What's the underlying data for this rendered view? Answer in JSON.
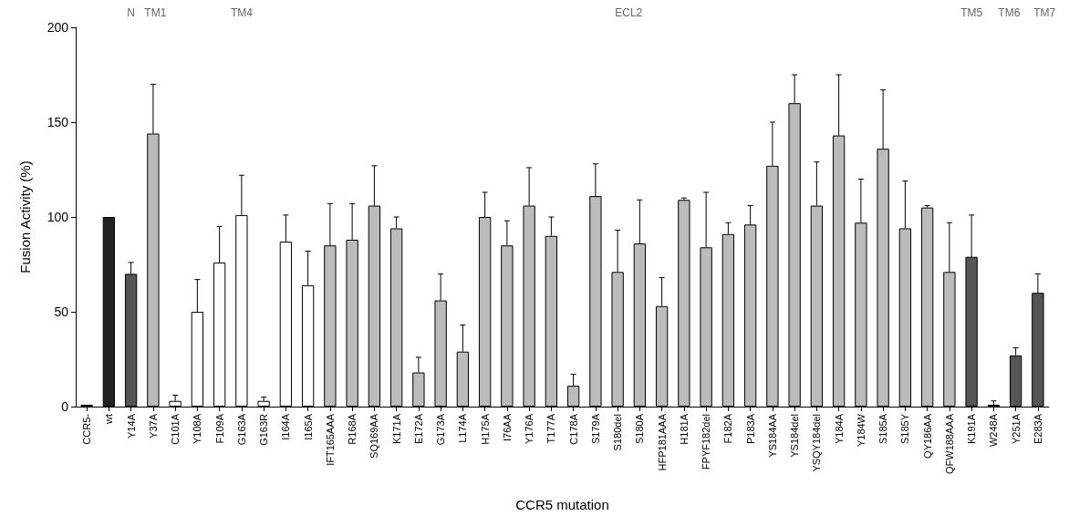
{
  "chart_data": {
    "type": "bar",
    "xlabel": "CCR5 mutation",
    "ylabel": "Fusion Activity (%)",
    "categories": [
      "CCR5-",
      "wt",
      "Y14A",
      "Y37A",
      "C101A",
      "Y108A",
      "F109A",
      "G163A",
      "G163R",
      "I164A",
      "I165A",
      "IFT165AAA",
      "R168A",
      "SQ169AA",
      "K171A",
      "E172A",
      "G173A",
      "L174A",
      "H175A",
      "I76AA",
      "Y176A",
      "T177A",
      "C178A",
      "S179A",
      "S180del",
      "S180A",
      "HFP181AAA",
      "H181A",
      "FPYF182del",
      "F182A",
      "P183A",
      "YS184AA",
      "YS184del",
      "YSQY184del",
      "Y184A",
      "Y184W",
      "S185A",
      "S185Y",
      "QY186AA",
      "QFW188AAA",
      "K191A",
      "W248A",
      "Y251A",
      "E283A"
    ],
    "values": [
      1,
      100,
      70,
      144,
      3,
      50,
      76,
      101,
      3,
      87,
      64,
      85,
      88,
      106,
      94,
      18,
      56,
      29,
      100,
      85,
      106,
      90,
      11,
      111,
      71,
      86,
      53,
      109,
      84,
      91,
      96,
      127,
      160,
      106,
      143,
      97,
      136,
      94,
      105,
      71,
      79,
      1,
      27,
      60
    ],
    "colors": [
      "#555555",
      "#222222",
      "#555555",
      "#bbbbbb",
      "#ffffff",
      "#ffffff",
      "#ffffff",
      "#ffffff",
      "#ffffff",
      "#ffffff",
      "#ffffff",
      "#bbbbbb",
      "#bbbbbb",
      "#bbbbbb",
      "#bbbbbb",
      "#bbbbbb",
      "#bbbbbb",
      "#bbbbbb",
      "#bbbbbb",
      "#bbbbbb",
      "#bbbbbb",
      "#bbbbbb",
      "#bbbbbb",
      "#bbbbbb",
      "#bbbbbb",
      "#bbbbbb",
      "#bbbbbb",
      "#bbbbbb",
      "#bbbbbb",
      "#bbbbbb",
      "#bbbbbb",
      "#bbbbbb",
      "#bbbbbb",
      "#bbbbbb",
      "#bbbbbb",
      "#bbbbbb",
      "#bbbbbb",
      "#bbbbbb",
      "#bbbbbb",
      "#bbbbbb",
      "#555555",
      "#555555",
      "#555555",
      "#555555"
    ],
    "errors": [
      null,
      null,
      [
        70,
        76
      ],
      [
        144,
        170
      ],
      [
        3,
        6
      ],
      [
        50,
        67
      ],
      [
        76,
        95
      ],
      [
        101,
        122
      ],
      [
        3,
        5
      ],
      [
        87,
        101
      ],
      [
        64,
        82
      ],
      [
        85,
        107
      ],
      [
        88,
        107
      ],
      [
        106,
        127
      ],
      [
        94,
        100
      ],
      [
        18,
        26
      ],
      [
        56,
        70
      ],
      [
        29,
        43
      ],
      [
        100,
        113
      ],
      [
        85,
        98
      ],
      [
        106,
        126
      ],
      [
        90,
        100
      ],
      [
        11,
        17
      ],
      [
        111,
        128
      ],
      [
        71,
        93
      ],
      [
        86,
        109
      ],
      [
        53,
        68
      ],
      [
        109,
        110
      ],
      [
        84,
        113
      ],
      [
        91,
        97
      ],
      [
        96,
        106
      ],
      [
        127,
        150
      ],
      [
        160,
        175
      ],
      [
        106,
        129
      ],
      [
        143,
        175
      ],
      [
        97,
        120
      ],
      [
        136,
        167
      ],
      [
        94,
        119
      ],
      [
        105,
        106
      ],
      [
        71,
        97
      ],
      [
        79,
        101
      ],
      [
        1,
        3
      ],
      [
        27,
        31
      ],
      [
        60,
        70
      ]
    ],
    "ylim": [
      0,
      200
    ],
    "yticks": [
      0,
      50,
      100,
      150,
      200
    ],
    "grid": false,
    "annotations": [
      "N",
      "TM1",
      "TM4",
      "ECL2",
      "TM5",
      "TM6",
      "TM7"
    ]
  }
}
